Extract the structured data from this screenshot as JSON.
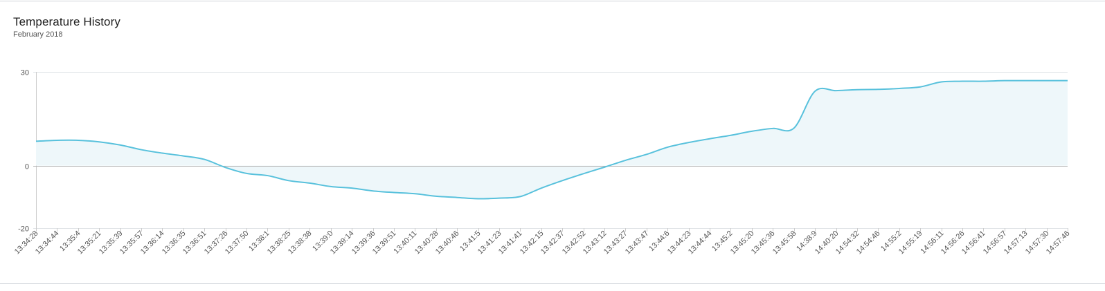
{
  "header": {
    "title": "Temperature History",
    "subtitle": "February 2018"
  },
  "colors": {
    "line": "#58c1dc",
    "area": "#eef7fa",
    "grid": "#dfe3e6",
    "zero_line": "#b5b5b5",
    "axis": "#cccccc",
    "label": "#555555"
  },
  "chart_data": {
    "type": "area",
    "title": "Temperature History",
    "subtitle": "February 2018",
    "xlabel": "",
    "ylabel": "",
    "ylim": [
      -20,
      30
    ],
    "y_ticks": [
      30,
      0,
      -20
    ],
    "grid": true,
    "legend": "none",
    "categories": [
      "13:34:28",
      "13:34:44",
      "13:35:4",
      "13:35:21",
      "13:35:39",
      "13:35:57",
      "13:36:14",
      "13:36:35",
      "13:36:51",
      "13:37:26",
      "13:37:50",
      "13:38:1",
      "13:38:25",
      "13:38:38",
      "13:39:0",
      "13:39:14",
      "13:39:36",
      "13:39:51",
      "13:40:11",
      "13:40:28",
      "13:40:46",
      "13:41:5",
      "13:41:23",
      "13:41:41",
      "13:42:15",
      "13:42:37",
      "13:42:52",
      "13:43:12",
      "13:43:27",
      "13:43:47",
      "13:44:6",
      "13:44:23",
      "13:44:44",
      "13:45:2",
      "13:45:20",
      "13:45:36",
      "13:45:58",
      "14:38:9",
      "14:40:20",
      "14:54:32",
      "14:54:46",
      "14:55:2",
      "14:55:19",
      "14:56:11",
      "14:56:26",
      "14:56:41",
      "14:56:57",
      "14:57:13",
      "14:57:30",
      "14:57:46"
    ],
    "values": [
      7.8,
      8.1,
      8.1,
      7.6,
      6.6,
      5.1,
      4.0,
      3.1,
      2.0,
      -0.6,
      -2.5,
      -3.2,
      -4.8,
      -5.6,
      -6.7,
      -7.2,
      -8.1,
      -8.6,
      -9.0,
      -9.8,
      -10.2,
      -10.6,
      -10.4,
      -9.9,
      -7.2,
      -4.8,
      -2.6,
      -0.5,
      1.7,
      3.6,
      5.9,
      7.4,
      8.6,
      9.7,
      11.0,
      11.9,
      12.0,
      23.8,
      24.0,
      24.3,
      24.4,
      24.7,
      25.2,
      26.8,
      27.0,
      27.0,
      27.2,
      27.2,
      27.2,
      27.2
    ]
  }
}
